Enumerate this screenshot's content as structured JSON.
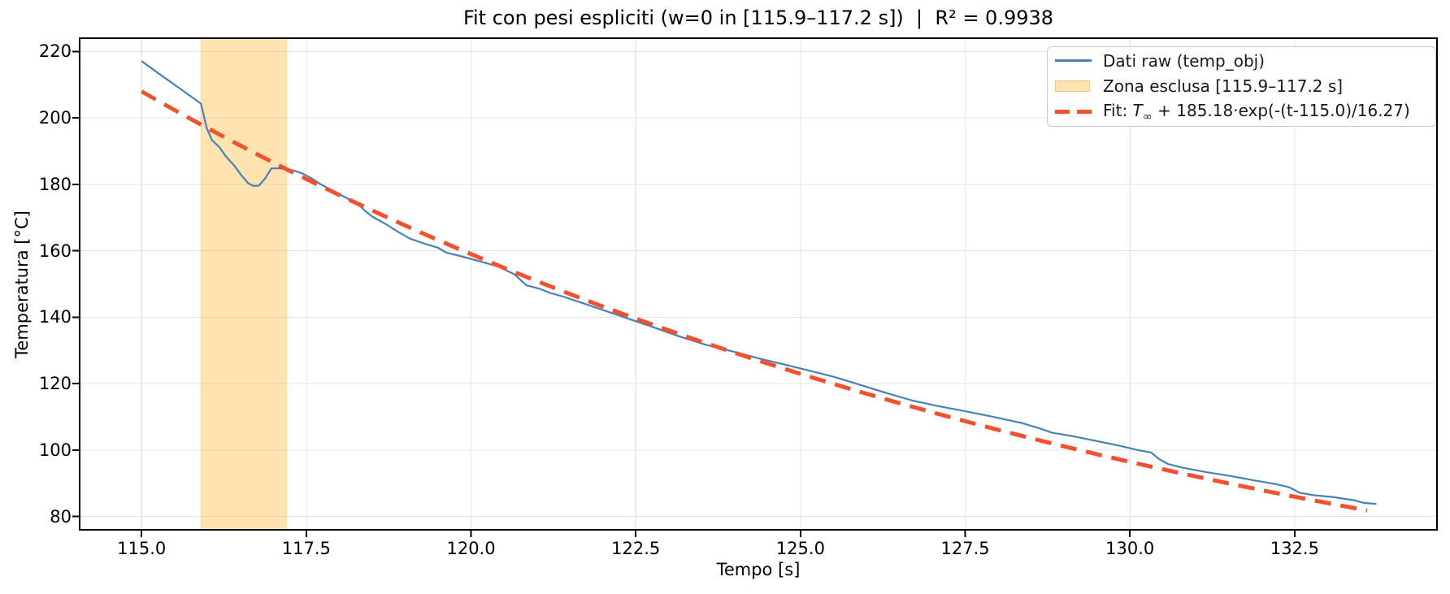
{
  "title": "Fit con pesi espliciti (w=0 in [115.9–117.2 s])  |  R² = 0.9938",
  "legend": {
    "items": [
      {
        "label": "Dati raw (temp_obj)",
        "type": "line"
      },
      {
        "label": "Zona esclusa [115.9–117.2 s]",
        "type": "patch"
      },
      {
        "label": "Fit: T∞ + 185.18·exp(-(t-115.0)/16.27)",
        "type": "dashed"
      }
    ],
    "fit_parts": {
      "prefix": "Fit: ",
      "T": "T",
      "inf": "∞",
      "rest": " + 185.18·exp(-(t-115.0)/16.27)"
    }
  },
  "chart_data": {
    "type": "line",
    "title": "Fit con pesi espliciti (w=0 in [115.9–117.2 s])  |  R² = 0.9938",
    "xlabel": "Tempo [s]",
    "ylabel": "Temperatura [°C]",
    "r_squared": 0.9938,
    "xlim": [
      114.06,
      134.66
    ],
    "ylim": [
      76,
      224
    ],
    "x_ticks": [
      115.0,
      117.5,
      120.0,
      122.5,
      125.0,
      127.5,
      130.0,
      132.5
    ],
    "x_tick_labels": [
      "115.0",
      "117.5",
      "120.0",
      "122.5",
      "125.0",
      "127.5",
      "130.0",
      "132.5"
    ],
    "y_ticks": [
      80,
      100,
      120,
      140,
      160,
      180,
      200,
      220
    ],
    "y_tick_labels": [
      "80",
      "100",
      "120",
      "140",
      "160",
      "180",
      "200",
      "220"
    ],
    "grid": true,
    "grid_color": "#e5e5e5",
    "frame_color": "#000000",
    "legend_position": "upper right",
    "excluded_zone": {
      "from": 115.9,
      "to": 117.2,
      "color": "#ffa500",
      "alpha": 0.3,
      "legend_fill": "#ffe4b2",
      "legend_edge": "#e9c88a"
    },
    "series": [
      {
        "name": "Dati raw (temp_obj)",
        "type": "line",
        "color": "#4682b4",
        "width": 2.2,
        "points": [
          [
            115.0,
            217.1
          ],
          [
            115.3,
            212.8
          ],
          [
            115.6,
            208.6
          ],
          [
            115.9,
            204.3
          ],
          [
            115.99,
            196.8
          ],
          [
            116.07,
            193.3
          ],
          [
            116.18,
            191.2
          ],
          [
            116.28,
            188.4
          ],
          [
            116.4,
            185.8
          ],
          [
            116.52,
            182.6
          ],
          [
            116.62,
            180.3
          ],
          [
            116.7,
            179.5
          ],
          [
            116.78,
            179.6
          ],
          [
            116.88,
            181.9
          ],
          [
            116.97,
            184.8
          ],
          [
            117.08,
            184.8
          ],
          [
            117.2,
            184.6
          ],
          [
            117.32,
            184.1
          ],
          [
            117.45,
            183.2
          ],
          [
            117.58,
            181.8
          ],
          [
            117.72,
            180.0
          ],
          [
            117.88,
            178.3
          ],
          [
            118.08,
            176.2
          ],
          [
            118.28,
            174.1
          ],
          [
            118.4,
            171.9
          ],
          [
            118.5,
            170.3
          ],
          [
            118.7,
            168.1
          ],
          [
            118.9,
            165.6
          ],
          [
            119.08,
            163.6
          ],
          [
            119.3,
            162.1
          ],
          [
            119.5,
            160.9
          ],
          [
            119.62,
            159.5
          ],
          [
            119.88,
            158.2
          ],
          [
            120.12,
            156.9
          ],
          [
            120.42,
            155.2
          ],
          [
            120.66,
            152.9
          ],
          [
            120.84,
            149.6
          ],
          [
            121.05,
            148.5
          ],
          [
            121.2,
            147.3
          ],
          [
            121.4,
            146.2
          ],
          [
            121.7,
            144.2
          ],
          [
            122.0,
            142.2
          ],
          [
            122.35,
            139.8
          ],
          [
            122.75,
            137.1
          ],
          [
            123.15,
            134.3
          ],
          [
            123.55,
            131.8
          ],
          [
            123.95,
            129.8
          ],
          [
            124.35,
            127.7
          ],
          [
            124.75,
            125.8
          ],
          [
            125.1,
            124.1
          ],
          [
            125.5,
            122.1
          ],
          [
            125.9,
            119.7
          ],
          [
            126.3,
            117.2
          ],
          [
            126.7,
            114.9
          ],
          [
            127.1,
            113.2
          ],
          [
            127.5,
            111.7
          ],
          [
            127.9,
            110.1
          ],
          [
            128.35,
            108.2
          ],
          [
            128.62,
            106.6
          ],
          [
            128.82,
            105.2
          ],
          [
            129.1,
            104.3
          ],
          [
            129.4,
            103.1
          ],
          [
            129.8,
            101.5
          ],
          [
            130.12,
            100.0
          ],
          [
            130.32,
            99.3
          ],
          [
            130.44,
            97.3
          ],
          [
            130.58,
            95.8
          ],
          [
            130.8,
            94.7
          ],
          [
            131.15,
            93.4
          ],
          [
            131.5,
            92.3
          ],
          [
            131.85,
            91.0
          ],
          [
            132.2,
            89.8
          ],
          [
            132.42,
            88.8
          ],
          [
            132.58,
            87.1
          ],
          [
            132.8,
            86.4
          ],
          [
            133.1,
            85.8
          ],
          [
            133.4,
            84.9
          ],
          [
            133.55,
            84.1
          ],
          [
            133.74,
            83.8
          ]
        ]
      },
      {
        "name": "Fit: T∞ + 185.18·exp(-(t-115.0)/16.27)",
        "type": "dashed",
        "color": "#f4502e",
        "width": 5,
        "dash": "20 12",
        "fit_params": {
          "T_inf": 22.8,
          "A": 185.18,
          "t0": 115.0,
          "tau": 16.27,
          "t_start": 115.0,
          "t_end": 133.68
        }
      }
    ]
  }
}
